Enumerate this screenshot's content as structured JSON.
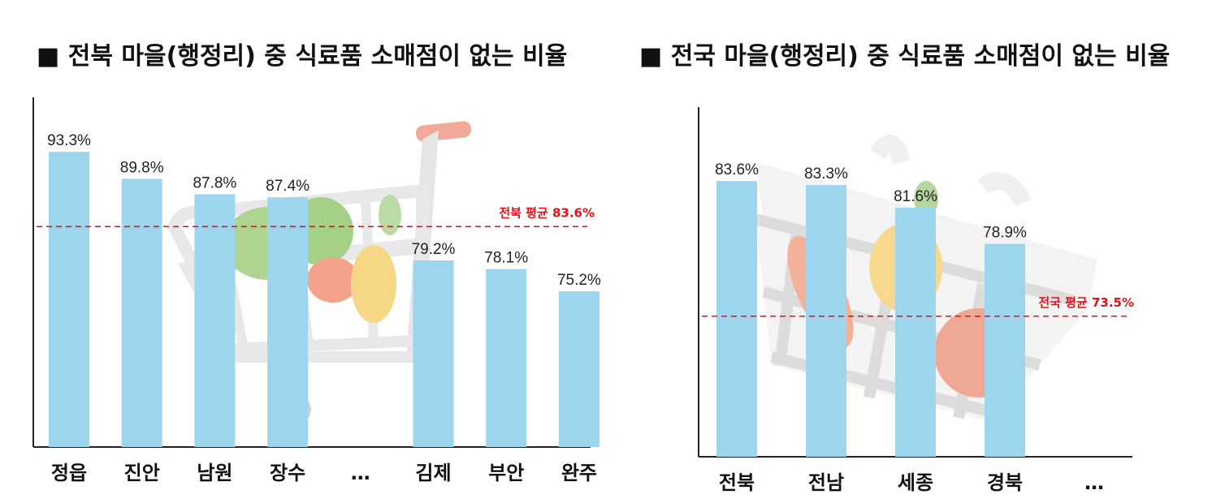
{
  "chart_data": [
    {
      "type": "bar",
      "title": "■ 전북 마을(행정리) 중 식료품 소매점이 없는 비율",
      "categories": [
        "정읍",
        "진안",
        "남원",
        "장수",
        "…",
        "김제",
        "부안",
        "완주"
      ],
      "values": [
        93.3,
        89.8,
        87.8,
        87.4,
        null,
        79.2,
        78.1,
        75.2
      ],
      "value_labels": [
        "93.3%",
        "89.8%",
        "87.8%",
        "87.4%",
        "",
        "79.2%",
        "78.1%",
        "75.2%"
      ],
      "reference_line": {
        "value": 83.6,
        "label": "전북 평균 83.6%",
        "color": "#e0111a"
      },
      "bar_color": "#9dd5ef",
      "grid": false
    },
    {
      "type": "bar",
      "title": "■ 전국 마을(행정리) 중 식료품 소매점이 없는 비율",
      "categories": [
        "전북",
        "전남",
        "세종",
        "경북",
        "…"
      ],
      "values": [
        83.6,
        83.3,
        81.6,
        78.9,
        null
      ],
      "value_labels": [
        "83.6%",
        "83.3%",
        "81.6%",
        "78.9%",
        ""
      ],
      "reference_line": {
        "value": 73.5,
        "label": "전국 평균 73.5%",
        "color": "#e0111a"
      },
      "bar_color": "#9dd5ef",
      "grid": false
    }
  ]
}
